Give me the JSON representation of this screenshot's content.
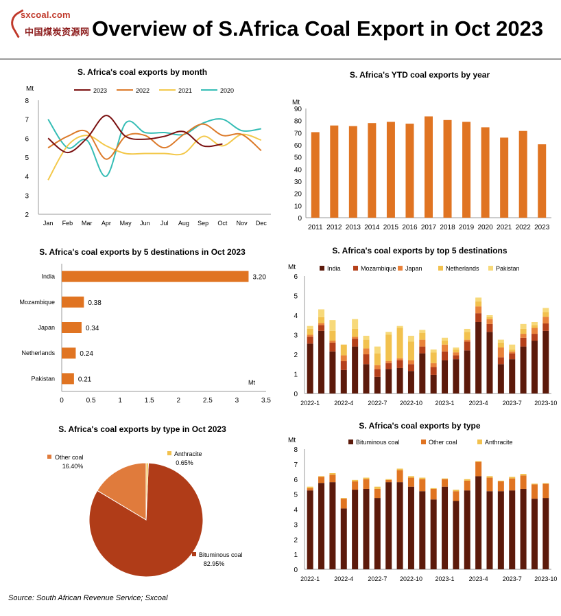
{
  "header": {
    "logo_url": "sxcoal.com",
    "logo_cn": "中国煤炭资源网",
    "title": "Overview of S.Africa Coal Export in Oct 2023"
  },
  "source": "Source: South African Revenue Service; Sxcoal",
  "colors": {
    "orange": "#e07422",
    "dark": "#5c1a0b",
    "mid": "#b5401a",
    "light": "#e9823a",
    "yellow": "#f2c14e",
    "pale": "#f7d97a",
    "line2023": "#7a1010",
    "line2022": "#dc7a2a",
    "line2021": "#f3c84b",
    "line2020": "#35bdb5",
    "pie_bit": "#b03c18",
    "pie_other": "#e07b3c",
    "pie_anth": "#f2c14e"
  },
  "chart_data": [
    {
      "id": "monthly",
      "type": "line",
      "title": "S. Africa's coal exports by month",
      "ylabel": "Mt",
      "categories": [
        "Jan",
        "Feb",
        "Mar",
        "Apr",
        "May",
        "Jun",
        "Jul",
        "Aug",
        "Sep",
        "Oct",
        "Nov",
        "Dec"
      ],
      "ylim": [
        2,
        8
      ],
      "yticks": [
        2,
        3,
        4,
        5,
        6,
        7,
        8
      ],
      "series": [
        {
          "name": "2023",
          "values": [
            6.0,
            5.25,
            6.0,
            7.2,
            6.1,
            5.95,
            6.1,
            6.35,
            5.6,
            5.7,
            null,
            null
          ]
        },
        {
          "name": "2022",
          "values": [
            5.5,
            6.1,
            6.35,
            4.9,
            6.1,
            6.15,
            5.5,
            6.2,
            6.75,
            6.15,
            6.2,
            5.35
          ]
        },
        {
          "name": "2021",
          "values": [
            3.8,
            5.6,
            6.15,
            5.6,
            5.2,
            5.2,
            5.2,
            5.2,
            6.1,
            5.6,
            6.2,
            5.9
          ]
        },
        {
          "name": "2020",
          "values": [
            7.0,
            5.5,
            5.9,
            4.0,
            6.8,
            6.3,
            6.3,
            6.2,
            6.8,
            7.0,
            6.4,
            6.5
          ]
        }
      ]
    },
    {
      "id": "ytd",
      "type": "bar",
      "title": "S. Africa's YTD coal exports by year",
      "ylabel": "Mt",
      "categories": [
        "2011",
        "2012",
        "2013",
        "2014",
        "2015",
        "2016",
        "2017",
        "2018",
        "2019",
        "2020",
        "2021",
        "2022",
        "2023"
      ],
      "values": [
        70.5,
        76,
        75.5,
        78,
        79,
        77.5,
        83.5,
        80.5,
        79,
        74.5,
        66,
        71.5,
        60.5
      ],
      "ylim": [
        0,
        90
      ],
      "yticks": [
        0,
        10,
        20,
        30,
        40,
        50,
        60,
        70,
        80,
        90
      ]
    },
    {
      "id": "dest5",
      "type": "bar",
      "orientation": "horizontal",
      "title": "S. Africa's coal exports by 5 destinations in Oct 2023",
      "xlabel": "Mt",
      "categories": [
        "India",
        "Mozambique",
        "Japan",
        "Netherlands",
        "Pakistan"
      ],
      "values": [
        3.2,
        0.38,
        0.34,
        0.24,
        0.21
      ],
      "value_labels": [
        "3.20",
        "0.38",
        "0.34",
        "0.24",
        "0.21"
      ],
      "xlim": [
        0,
        3.5
      ],
      "xticks": [
        "0",
        "0.5",
        "1",
        "1.5",
        "2",
        "2.5",
        "3",
        "3.5"
      ]
    },
    {
      "id": "top5",
      "type": "bar",
      "stacked": true,
      "title": "S. Africa's coal exports by top 5 destinations",
      "ylabel": "Mt",
      "categories": [
        "2022-1",
        "2022-2",
        "2022-3",
        "2022-4",
        "2022-5",
        "2022-6",
        "2022-7",
        "2022-8",
        "2022-9",
        "2022-10",
        "2022-11",
        "2022-12",
        "2023-1",
        "2023-2",
        "2023-3",
        "2023-4",
        "2023-5",
        "2023-6",
        "2023-7",
        "2023-8",
        "2023-9",
        "2023-10"
      ],
      "tick_labels": [
        "2022-1",
        "",
        "",
        "2022-4",
        "",
        "",
        "2022-7",
        "",
        "",
        "2022-10",
        "",
        "",
        "2023-1",
        "",
        "",
        "2023-4",
        "",
        "",
        "2023-7",
        "",
        "",
        "2023-10"
      ],
      "ylim": [
        0,
        6
      ],
      "yticks": [
        0,
        1,
        2,
        3,
        4,
        5,
        6
      ],
      "series": [
        {
          "name": "India",
          "values": [
            2.55,
            3.2,
            2.15,
            1.2,
            2.4,
            1.5,
            0.85,
            1.25,
            1.3,
            1.15,
            2.05,
            0.95,
            1.7,
            1.75,
            2.2,
            3.65,
            3.15,
            1.5,
            1.75,
            2.4,
            2.7,
            3.2
          ]
        },
        {
          "name": "Mozambique",
          "values": [
            0.35,
            0.3,
            0.45,
            0.45,
            0.4,
            0.5,
            0.4,
            0.3,
            0.4,
            0.35,
            0.35,
            0.4,
            0.45,
            0.2,
            0.45,
            0.45,
            0.4,
            0.35,
            0.3,
            0.45,
            0.35,
            0.38
          ]
        },
        {
          "name": "Japan",
          "values": [
            0.1,
            0.1,
            0.1,
            0.3,
            0.1,
            0.3,
            0.2,
            0.1,
            0.1,
            0.2,
            0.35,
            0.2,
            0.35,
            0.15,
            0.1,
            0.35,
            0.25,
            0.5,
            0.1,
            0.2,
            0.3,
            0.34
          ]
        },
        {
          "name": "Netherlands",
          "values": [
            0.3,
            0.3,
            0.5,
            0.55,
            0.4,
            0.45,
            0.6,
            1.35,
            1.55,
            0.95,
            0.35,
            0.55,
            0.2,
            0.15,
            0.4,
            0.25,
            0.1,
            0.25,
            0.1,
            0.25,
            0.15,
            0.24
          ]
        },
        {
          "name": "Pakistan",
          "values": [
            0.15,
            0.4,
            0.55,
            0.0,
            0.5,
            0.2,
            0.35,
            0.15,
            0.1,
            0.3,
            0.15,
            0.15,
            0.15,
            0.1,
            0.15,
            0.2,
            0.1,
            0.15,
            0.25,
            0.25,
            0.15,
            0.21
          ]
        }
      ]
    },
    {
      "id": "typepie",
      "type": "pie",
      "title": "S. Africa's coal exports by type in Oct 2023",
      "labels": [
        "Bituminous coal",
        "Other coal",
        "Anthracite"
      ],
      "values": [
        82.95,
        16.4,
        0.65
      ],
      "value_labels": [
        "82.95%",
        "16.40%",
        "0.65%"
      ]
    },
    {
      "id": "bytype",
      "type": "bar",
      "stacked": true,
      "title": "S. Africa's coal exports by type",
      "ylabel": "Mt",
      "categories": [
        "2022-1",
        "2022-2",
        "2022-3",
        "2022-4",
        "2022-5",
        "2022-6",
        "2022-7",
        "2022-8",
        "2022-9",
        "2022-10",
        "2022-11",
        "2022-12",
        "2023-1",
        "2023-2",
        "2023-3",
        "2023-4",
        "2023-5",
        "2023-6",
        "2023-7",
        "2023-8",
        "2023-9",
        "2023-10"
      ],
      "tick_labels": [
        "2022-1",
        "",
        "",
        "2022-4",
        "",
        "",
        "2022-7",
        "",
        "",
        "2022-10",
        "",
        "",
        "2023-1",
        "",
        "",
        "2023-4",
        "",
        "",
        "2023-7",
        "",
        "",
        "2023-10"
      ],
      "ylim": [
        0,
        8
      ],
      "yticks": [
        0,
        1,
        2,
        3,
        4,
        5,
        6,
        7,
        8
      ],
      "series": [
        {
          "name": "Bituminous coal",
          "values": [
            5.25,
            5.75,
            5.8,
            4.05,
            5.3,
            5.35,
            4.75,
            5.8,
            5.8,
            5.5,
            5.2,
            4.65,
            5.5,
            4.55,
            5.25,
            6.2,
            5.2,
            5.2,
            5.25,
            5.35,
            4.7,
            4.75
          ]
        },
        {
          "name": "Other coal",
          "values": [
            0.15,
            0.4,
            0.5,
            0.65,
            0.55,
            0.65,
            0.6,
            0.15,
            0.8,
            0.6,
            0.8,
            0.7,
            0.5,
            0.65,
            0.65,
            0.95,
            0.9,
            0.65,
            0.8,
            0.9,
            0.95,
            0.94
          ]
        },
        {
          "name": "Anthracite",
          "values": [
            0.1,
            0.05,
            0.1,
            0.05,
            0.1,
            0.1,
            0.15,
            0.05,
            0.1,
            0.1,
            0.1,
            0.05,
            0.05,
            0.1,
            0.1,
            0.05,
            0.1,
            0.05,
            0.1,
            0.1,
            0.05,
            0.04
          ]
        }
      ]
    }
  ]
}
